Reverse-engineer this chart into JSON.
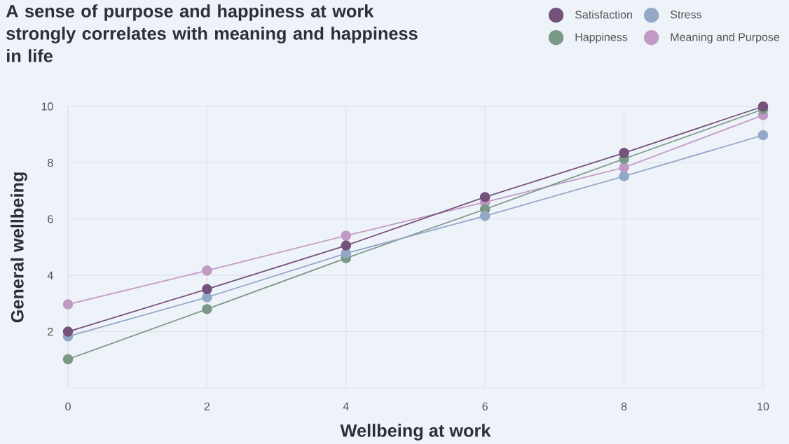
{
  "chart_data": {
    "type": "line",
    "title": "A sense of purpose and happiness at work strongly correlates with meaning and happiness in life",
    "xlabel": "Wellbeing at work",
    "ylabel": "General wellbeing",
    "x": [
      0,
      2,
      4,
      6,
      8,
      10
    ],
    "series": [
      {
        "name": "Satisfaction",
        "color": "#74527a",
        "values": [
          2.0,
          3.51,
          5.06,
          6.78,
          8.35,
          10.0
        ]
      },
      {
        "name": "Stress",
        "color": "#93a8c6",
        "values": [
          1.83,
          3.22,
          4.78,
          6.11,
          7.52,
          8.98
        ]
      },
      {
        "name": "Happiness",
        "color": "#7a9886",
        "values": [
          1.02,
          2.8,
          4.61,
          6.35,
          8.14,
          9.9
        ]
      },
      {
        "name": "Meaning and Purpose",
        "color": "#c09ac4",
        "values": [
          2.97,
          4.17,
          5.41,
          6.6,
          7.83,
          9.69
        ]
      }
    ],
    "xlim": [
      0,
      10
    ],
    "ylim": [
      0,
      10
    ],
    "xticks": [
      0,
      2,
      4,
      6,
      8,
      10
    ],
    "yticks": [
      2,
      4,
      6,
      8,
      10
    ],
    "grid": true,
    "legend": "top right",
    "marker": "circle",
    "line_style": "solid"
  }
}
